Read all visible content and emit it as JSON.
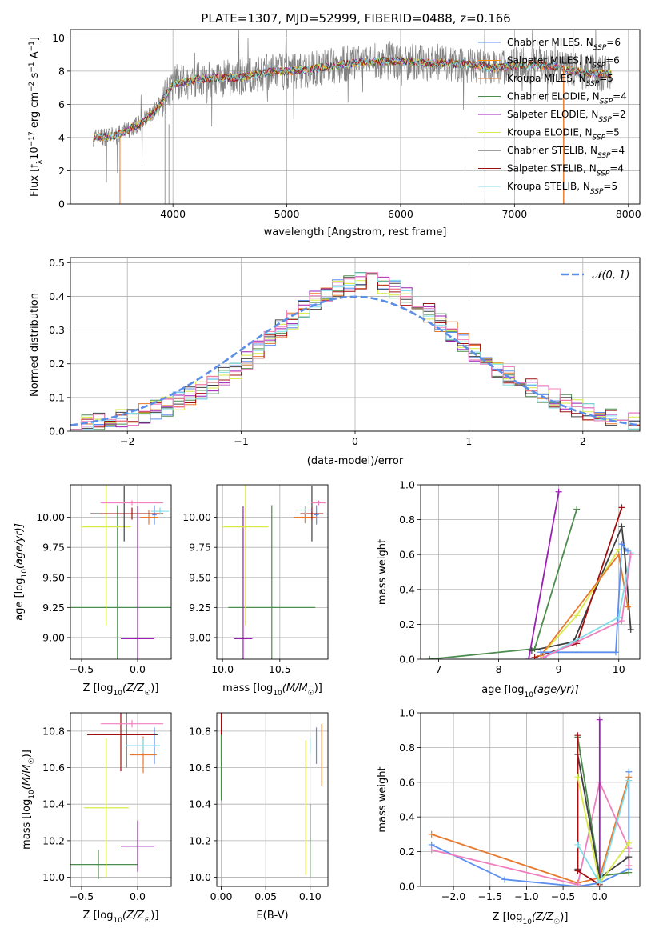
{
  "title": "PLATE=1307, MJD=52999, FIBERID=0488, z=0.166",
  "colors": {
    "Chabrier MILES": "#5b8ff0",
    "Salpeter MILES": "#ff8c00",
    "Kroupa MILES": "#e8782b",
    "Chabrier ELODIE": "#4c8c4c",
    "Salpeter ELODIE": "#9b1fb5",
    "Kroupa ELODIE": "#d9ea4a",
    "Chabrier STELIB": "#404040",
    "Salpeter STELIB": "#a01010",
    "Kroupa STELIB": "#7fdde8",
    "pink": "#f07fbf",
    "normal": "#5b8ee6"
  },
  "chart_data": [
    {
      "type": "line",
      "id": "spectrum",
      "xlabel": "wavelength [Angstrom, rest frame]",
      "ylabel_main": "Flux [f",
      "ylabel_sub": "λ",
      "ylabel_rest": "10",
      "ylabel_exp1": "−17",
      "ylabel_mid": " erg cm",
      "ylabel_exp2": "−2",
      "ylabel_mid2": " s",
      "ylabel_exp3": "−1",
      "ylabel_end": " A",
      "ylabel_exp4": "−1",
      "ylabel_close": "]",
      "xlim": [
        3100,
        8100
      ],
      "ylim": [
        0,
        10.5
      ],
      "xticks": [
        4000,
        5000,
        6000,
        7000,
        8000
      ],
      "yticks": [
        0,
        2,
        4,
        6,
        8,
        10
      ],
      "legend": [
        {
          "label": "Chabrier MILES, N",
          "sub": "SSP",
          "n": "=6",
          "color": "#5b8ff0"
        },
        {
          "label": "Salpeter MILES, N",
          "sub": "SSP",
          "n": "=6",
          "color": "#ff8c00"
        },
        {
          "label": "Kroupa MILES, N",
          "sub": "SSP",
          "n": "=5",
          "color": "#e8782b"
        },
        {
          "label": "Chabrier ELODIE, N",
          "sub": "SSP",
          "n": "=4",
          "color": "#4c8c4c"
        },
        {
          "label": "Salpeter ELODIE, N",
          "sub": "SSP",
          "n": "=2",
          "color": "#9b1fb5"
        },
        {
          "label": "Kroupa ELODIE, N",
          "sub": "SSP",
          "n": "=5",
          "color": "#d9ea4a"
        },
        {
          "label": "Chabrier STELIB, N",
          "sub": "SSP",
          "n": "=4",
          "color": "#404040"
        },
        {
          "label": "Salpeter STELIB, N",
          "sub": "SSP",
          "n": "=4",
          "color": "#a01010"
        },
        {
          "label": "Kroupa STELIB, N",
          "sub": "SSP",
          "n": "=5",
          "color": "#7fdde8"
        }
      ],
      "data_series_color": "#808080",
      "continuum": [
        [
          3300,
          4.0
        ],
        [
          3500,
          4.1
        ],
        [
          3700,
          4.8
        ],
        [
          3850,
          5.6
        ],
        [
          4000,
          7.2
        ],
        [
          4200,
          7.5
        ],
        [
          4400,
          7.6
        ],
        [
          4600,
          7.6
        ],
        [
          4800,
          7.9
        ],
        [
          5000,
          8.0
        ],
        [
          5200,
          8.1
        ],
        [
          5400,
          8.3
        ],
        [
          5600,
          8.5
        ],
        [
          5800,
          8.6
        ],
        [
          6000,
          8.6
        ],
        [
          6200,
          8.5
        ],
        [
          6400,
          8.5
        ],
        [
          6600,
          8.4
        ],
        [
          6800,
          8.2
        ],
        [
          7000,
          8.3
        ],
        [
          7200,
          8.4
        ],
        [
          7400,
          8.2
        ],
        [
          7600,
          7.9
        ],
        [
          7850,
          7.8
        ]
      ]
    },
    {
      "type": "bar",
      "id": "residuals",
      "xlabel": "(data-model)/error",
      "ylabel": "Normed distribution",
      "xlim": [
        -2.5,
        2.5
      ],
      "ylim": [
        0,
        0.515
      ],
      "xticks": [
        -2,
        -1,
        0,
        1,
        2
      ],
      "yticks": [
        0.0,
        0.1,
        0.2,
        0.3,
        0.4,
        0.5
      ],
      "legend": "𝒩(0, 1)",
      "grid": true
    },
    {
      "type": "scatter",
      "id": "age_vs_Z",
      "xlabel": "Z [log",
      "xlabel_sub": "10",
      "xlabel_rest": "(Z/Z",
      "xlabel_sun": "☉",
      "xlabel_close": ")]",
      "ylabel": "age  [log",
      "ylabel_sub": "10",
      "ylabel_rest": "(age/yr)]",
      "xlim": [
        -0.6,
        0.3
      ],
      "ylim": [
        8.82,
        10.27
      ],
      "xticks": [
        -0.5,
        0.0
      ],
      "yticks": [
        9.0,
        9.25,
        9.5,
        9.75,
        10.0
      ],
      "points": [
        {
          "x": 0.15,
          "y": 10.02,
          "xe": 0.02,
          "ye": 0.08,
          "color": "#5b8ff0"
        },
        {
          "x": 0.1,
          "y": 10.0,
          "xe": 0.08,
          "ye": 0.06,
          "color": "#e8782b"
        },
        {
          "x": -0.18,
          "y": 9.25,
          "xe": 0.55,
          "ye": 0.85,
          "color": "#4c8c4c"
        },
        {
          "x": 0.0,
          "y": 8.99,
          "xe": 0.15,
          "ye": 1.1,
          "color": "#9b1fb5"
        },
        {
          "x": -0.28,
          "y": 9.92,
          "xe": 0.22,
          "ye": 0.82,
          "color": "#d9ea4a"
        },
        {
          "x": -0.12,
          "y": 10.03,
          "xe": 0.3,
          "ye": 0.23,
          "color": "#404040"
        },
        {
          "x": -0.05,
          "y": 10.03,
          "xe": 0.28,
          "ye": 0.05,
          "color": "#a01010"
        },
        {
          "x": 0.2,
          "y": 10.05,
          "xe": 0.08,
          "ye": 0.03,
          "color": "#7fdde8"
        },
        {
          "x": -0.05,
          "y": 10.12,
          "xe": 0.28,
          "ye": 0.02,
          "color": "#f07fbf"
        }
      ]
    },
    {
      "type": "scatter",
      "id": "age_vs_mass",
      "xlabel": "mass [log",
      "xlabel_sub": "10",
      "xlabel_rest": "(M/M",
      "xlabel_sun": "☉",
      "xlabel_close": ")]",
      "xlim": [
        9.95,
        10.92
      ],
      "ylim": [
        8.82,
        10.27
      ],
      "xticks": [
        10.0,
        10.5
      ],
      "yticks": [
        9.0,
        9.25,
        9.5,
        9.75,
        10.0
      ],
      "points": [
        {
          "x": 10.82,
          "y": 10.02,
          "xe": 0.02,
          "ye": 0.08,
          "color": "#5b8ff0"
        },
        {
          "x": 10.72,
          "y": 10.0,
          "xe": 0.1,
          "ye": 0.05,
          "color": "#e8782b"
        },
        {
          "x": 10.43,
          "y": 9.25,
          "xe": 0.38,
          "ye": 0.85,
          "color": "#4c8c4c"
        },
        {
          "x": 10.18,
          "y": 8.99,
          "xe": 0.08,
          "ye": 1.1,
          "color": "#9b1fb5"
        },
        {
          "x": 10.2,
          "y": 9.92,
          "xe": 0.2,
          "ye": 0.82,
          "color": "#d9ea4a"
        },
        {
          "x": 10.78,
          "y": 10.03,
          "xe": 0.1,
          "ye": 0.23,
          "color": "#404040"
        },
        {
          "x": 10.78,
          "y": 10.03,
          "xe": 0.1,
          "ye": 0.05,
          "color": "#a01010"
        },
        {
          "x": 10.72,
          "y": 10.06,
          "xe": 0.08,
          "ye": 0.03,
          "color": "#7fdde8"
        },
        {
          "x": 10.84,
          "y": 10.12,
          "xe": 0.06,
          "ye": 0.02,
          "color": "#f07fbf"
        }
      ]
    },
    {
      "type": "line",
      "id": "weight_vs_age",
      "xlabel": "age  [log",
      "xlabel_sub": "10",
      "xlabel_rest": "(age/yr)]",
      "ylabel": "mass weight",
      "xlim": [
        6.7,
        10.35
      ],
      "ylim": [
        0,
        1.0
      ],
      "xticks": [
        7,
        8,
        9,
        10
      ],
      "yticks": [
        0.0,
        0.2,
        0.4,
        0.6,
        0.8,
        1.0
      ],
      "series": [
        {
          "color": "#4c8c4c",
          "x": [
            6.85,
            8.6,
            9.3
          ],
          "y": [
            0.0,
            0.06,
            0.86
          ]
        },
        {
          "color": "#9b1fb5",
          "x": [
            8.5,
            9.0
          ],
          "y": [
            0.0,
            0.96
          ]
        },
        {
          "color": "#404040",
          "x": [
            8.55,
            9.25,
            10.05,
            10.1,
            10.2
          ],
          "y": [
            0.05,
            0.1,
            0.76,
            0.6,
            0.17
          ]
        },
        {
          "color": "#a01010",
          "x": [
            8.6,
            9.3,
            10.05
          ],
          "y": [
            0.01,
            0.09,
            0.87
          ]
        },
        {
          "color": "#d9ea4a",
          "x": [
            8.7,
            9.3,
            10.0
          ],
          "y": [
            0.02,
            0.25,
            0.63
          ]
        },
        {
          "color": "#e8782b",
          "x": [
            8.7,
            10.0,
            10.15
          ],
          "y": [
            0.02,
            0.6,
            0.3
          ]
        },
        {
          "color": "#5b8ff0",
          "x": [
            8.7,
            9.95,
            10.05,
            10.15
          ],
          "y": [
            0.04,
            0.04,
            0.66,
            0.62
          ]
        },
        {
          "color": "#7fdde8",
          "x": [
            8.75,
            10.0,
            10.2
          ],
          "y": [
            0.01,
            0.24,
            0.61
          ]
        },
        {
          "color": "#f07fbf",
          "x": [
            8.75,
            10.05,
            10.2
          ],
          "y": [
            0.01,
            0.22,
            0.6
          ]
        }
      ]
    },
    {
      "type": "scatter",
      "id": "mass_vs_Z",
      "xlabel": "Z [log",
      "xlabel_sub": "10",
      "xlabel_rest": "(Z/Z",
      "xlabel_sun": "☉",
      "xlabel_close": ")]",
      "ylabel": "mass [log",
      "ylabel_sub": "10",
      "ylabel_rest": "(M/M",
      "ylabel_sun": "☉",
      "ylabel_close": ")]",
      "xlim": [
        -0.6,
        0.3
      ],
      "ylim": [
        9.95,
        10.9
      ],
      "xticks": [
        -0.5,
        0.0
      ],
      "yticks": [
        10.0,
        10.2,
        10.4,
        10.6,
        10.8
      ],
      "points": [
        {
          "x": 0.15,
          "y": 10.72,
          "xe": 0.02,
          "ye": 0.1,
          "color": "#5b8ff0"
        },
        {
          "x": 0.05,
          "y": 10.67,
          "xe": 0.12,
          "ye": 0.1,
          "color": "#e8782b"
        },
        {
          "x": -0.35,
          "y": 10.07,
          "xe": 0.35,
          "ye": 0.08,
          "color": "#4c8c4c"
        },
        {
          "x": 0.0,
          "y": 10.17,
          "xe": 0.15,
          "ye": 0.14,
          "color": "#9b1fb5"
        },
        {
          "x": -0.28,
          "y": 10.38,
          "xe": 0.2,
          "ye": 0.38,
          "color": "#d9ea4a"
        },
        {
          "x": -0.1,
          "y": 10.78,
          "xe": 0.28,
          "ye": 0.18,
          "color": "#404040"
        },
        {
          "x": -0.15,
          "y": 10.78,
          "xe": 0.3,
          "ye": 0.2,
          "color": "#a01010"
        },
        {
          "x": 0.05,
          "y": 10.72,
          "xe": 0.15,
          "ye": 0.04,
          "color": "#7fdde8"
        },
        {
          "x": -0.05,
          "y": 10.84,
          "xe": 0.28,
          "ye": 0.02,
          "color": "#f07fbf"
        }
      ]
    },
    {
      "type": "scatter",
      "id": "mass_vs_ebv",
      "xlabel": "E(B-V)",
      "xlim": [
        -0.005,
        0.12
      ],
      "ylim": [
        9.95,
        10.9
      ],
      "xticks": [
        0.0,
        0.05,
        0.1
      ],
      "xticklabels": [
        "0.00",
        "0.05",
        "0.10"
      ],
      "yticks": [
        10.0,
        10.2,
        10.4,
        10.6,
        10.8
      ],
      "points": [
        {
          "x": 0.0,
          "y": 10.72,
          "xe": 0.0,
          "ye": 0.08,
          "color": "#5b8ff0"
        },
        {
          "x": 0.0,
          "y": 10.67,
          "xe": 0.0,
          "ye": 0.23,
          "color": "#a01010"
        },
        {
          "x": 0.0,
          "y": 10.6,
          "xe": 0.0,
          "ye": 0.18,
          "color": "#4c8c4c"
        },
        {
          "x": 0.1,
          "y": 10.3,
          "xe": 0.0,
          "ye": 0.1,
          "color": "#9b1fb5"
        },
        {
          "x": 0.095,
          "y": 10.38,
          "xe": 0.0,
          "ye": 0.37,
          "color": "#d9ea4a"
        },
        {
          "x": 0.1,
          "y": 10.2,
          "xe": 0.0,
          "ye": 0.2,
          "color": "#4c8c4c"
        },
        {
          "x": 0.107,
          "y": 10.72,
          "xe": 0.0,
          "ye": 0.1,
          "color": "#5b8ff0"
        },
        {
          "x": 0.113,
          "y": 10.67,
          "xe": 0.0,
          "ye": 0.17,
          "color": "#e8782b"
        },
        {
          "x": 0.1,
          "y": 10.72,
          "xe": 0.0,
          "ye": 0.04,
          "color": "#7fdde8"
        }
      ]
    },
    {
      "type": "line",
      "id": "weight_vs_Z",
      "xlabel": "Z [log",
      "xlabel_sub": "10",
      "xlabel_rest": "(Z/Z",
      "xlabel_sun": "☉",
      "xlabel_close": ")]",
      "ylabel": "mass weight",
      "xlim": [
        -2.45,
        0.55
      ],
      "ylim": [
        0,
        1.0
      ],
      "xticks": [
        -2.0,
        -1.5,
        -1.0,
        -0.5,
        0.0
      ],
      "yticks": [
        0.0,
        0.2,
        0.4,
        0.6,
        0.8,
        1.0
      ],
      "series": [
        {
          "color": "#5b8ff0",
          "x": [
            -2.3,
            -1.3,
            -0.3,
            0.0,
            0.4,
            0.4
          ],
          "y": [
            0.24,
            0.04,
            0.0,
            0.02,
            0.1,
            0.66
          ]
        },
        {
          "color": "#e8782b",
          "x": [
            -2.3,
            -0.3,
            0.0,
            0.4
          ],
          "y": [
            0.3,
            0.02,
            0.05,
            0.63
          ]
        },
        {
          "color": "#f07fbf",
          "x": [
            -2.3,
            -0.3,
            0.0,
            0.4,
            0.4
          ],
          "y": [
            0.21,
            0.01,
            0.6,
            0.22,
            0.12
          ]
        },
        {
          "color": "#4c8c4c",
          "x": [
            -0.3,
            0.0,
            0.4
          ],
          "y": [
            0.86,
            0.06,
            0.08
          ]
        },
        {
          "color": "#9b1fb5",
          "x": [
            0.0,
            0.0
          ],
          "y": [
            0.0,
            0.96
          ]
        },
        {
          "color": "#404040",
          "x": [
            -0.3,
            -0.3,
            0.0,
            0.4
          ],
          "y": [
            0.1,
            0.76,
            0.05,
            0.17
          ]
        },
        {
          "color": "#a01010",
          "x": [
            -0.3,
            -0.3,
            0.0,
            0.0
          ],
          "y": [
            0.87,
            0.09,
            0.01,
            0.0
          ]
        },
        {
          "color": "#d9ea4a",
          "x": [
            -0.3,
            0.0,
            0.4
          ],
          "y": [
            0.63,
            0.02,
            0.25
          ]
        },
        {
          "color": "#7fdde8",
          "x": [
            -0.3,
            0.0,
            0.4
          ],
          "y": [
            0.24,
            0.02,
            0.61
          ]
        }
      ]
    }
  ]
}
